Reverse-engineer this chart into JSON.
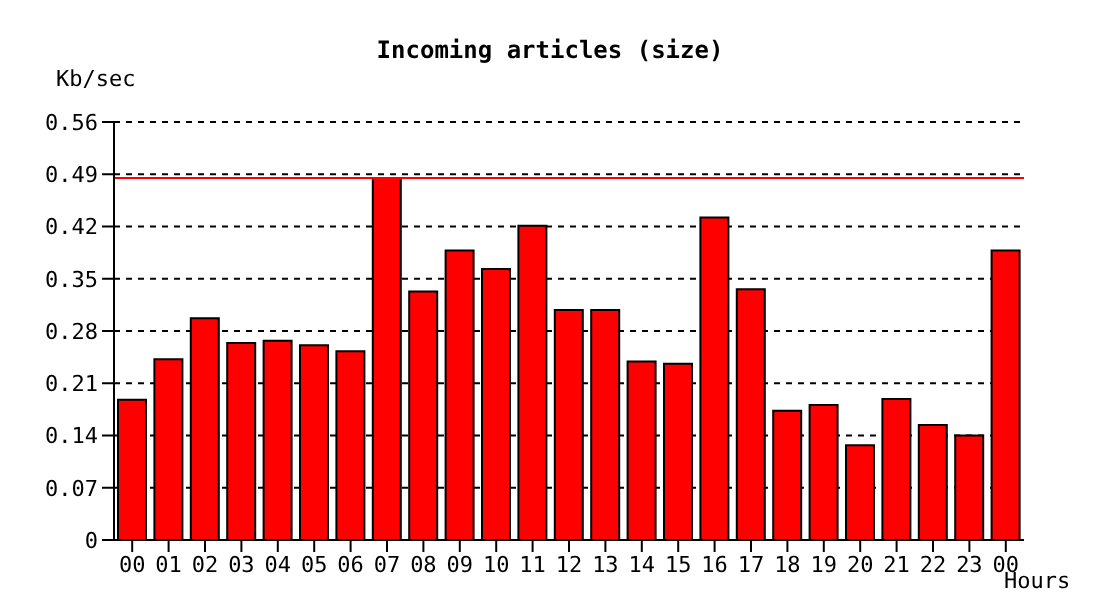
{
  "chart_data": {
    "type": "bar",
    "title": "Incoming articles (size)",
    "xlabel": "Hours",
    "ylabel": "Kb/sec",
    "categories": [
      "00",
      "01",
      "02",
      "03",
      "04",
      "05",
      "06",
      "07",
      "08",
      "09",
      "10",
      "11",
      "12",
      "13",
      "14",
      "15",
      "16",
      "17",
      "18",
      "19",
      "20",
      "21",
      "22",
      "23",
      "00"
    ],
    "values": [
      0.188,
      0.242,
      0.297,
      0.264,
      0.267,
      0.261,
      0.253,
      0.485,
      0.333,
      0.388,
      0.363,
      0.421,
      0.308,
      0.308,
      0.239,
      0.236,
      0.432,
      0.336,
      0.173,
      0.181,
      0.127,
      0.189,
      0.154,
      0.14,
      0.388
    ],
    "color": "#ff0000",
    "ylim": [
      0,
      0.56
    ],
    "yticks": [
      0,
      0.07,
      0.14,
      0.21,
      0.28,
      0.35,
      0.42,
      0.49,
      0.56
    ],
    "grid": "y",
    "ref_lines": [
      {
        "axis": "y",
        "value": 0.485,
        "color": "#ff0000",
        "line_style": "solid"
      }
    ]
  }
}
